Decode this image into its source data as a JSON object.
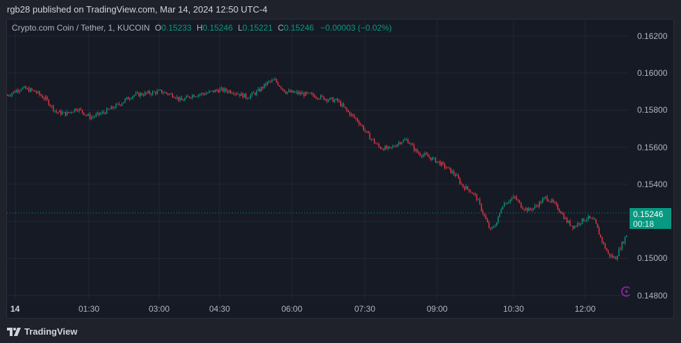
{
  "header": {
    "published_text": "rgb28 published on TradingView.com, Mar 14, 2024 12:50 UTC-4"
  },
  "legend": {
    "symbol": "Crypto.com Coin / Tether, 1, KUCOIN",
    "o_label": "O",
    "o_value": "0.15233",
    "h_label": "H",
    "h_value": "0.15246",
    "l_label": "L",
    "l_value": "0.15221",
    "c_label": "C",
    "c_value": "0.15246",
    "change": "−0.00003 (−0.02%)"
  },
  "price_tag": {
    "price": "0.15246",
    "countdown": "00:18"
  },
  "footer": {
    "brand": "TradingView"
  },
  "colors": {
    "up": "#089981",
    "down": "#f23645",
    "background": "#161a25",
    "grid": "#232734",
    "accent_purple": "#9c27b0"
  },
  "chart_data": {
    "type": "candlestick",
    "title": "Crypto.com Coin / Tether, 1, KUCOIN",
    "xlabel": "",
    "ylabel": "",
    "ylim": [
      0.1476,
      0.1628
    ],
    "y_ticks": [
      "0.16200",
      "0.16000",
      "0.15800",
      "0.15600",
      "0.15400",
      "0.15000",
      "0.14800"
    ],
    "x_ticks": [
      "14",
      "01:30",
      "03:00",
      "04:30",
      "06:00",
      "07:30",
      "09:00",
      "10:30",
      "12:00"
    ],
    "last_price": 0.15246,
    "grid": true,
    "close_path": [
      [
        0,
        0.1588
      ],
      [
        20,
        0.1592
      ],
      [
        40,
        0.159
      ],
      [
        55,
        0.1586
      ],
      [
        70,
        0.1579
      ],
      [
        85,
        0.1578
      ],
      [
        100,
        0.1581
      ],
      [
        120,
        0.1576
      ],
      [
        140,
        0.1579
      ],
      [
        160,
        0.1583
      ],
      [
        180,
        0.1588
      ],
      [
        200,
        0.1589
      ],
      [
        220,
        0.159
      ],
      [
        240,
        0.1588
      ],
      [
        250,
        0.1585
      ],
      [
        265,
        0.1588
      ],
      [
        285,
        0.1589
      ],
      [
        305,
        0.1591
      ],
      [
        325,
        0.159
      ],
      [
        345,
        0.1587
      ],
      [
        360,
        0.159
      ],
      [
        375,
        0.1595
      ],
      [
        385,
        0.1596
      ],
      [
        400,
        0.159
      ],
      [
        420,
        0.1589
      ],
      [
        440,
        0.1588
      ],
      [
        460,
        0.1586
      ],
      [
        475,
        0.1585
      ],
      [
        490,
        0.1579
      ],
      [
        505,
        0.1574
      ],
      [
        520,
        0.1566
      ],
      [
        535,
        0.156
      ],
      [
        550,
        0.1559
      ],
      [
        565,
        0.1563
      ],
      [
        575,
        0.1564
      ],
      [
        590,
        0.1557
      ],
      [
        605,
        0.1555
      ],
      [
        620,
        0.1552
      ],
      [
        635,
        0.1548
      ],
      [
        645,
        0.1545
      ],
      [
        655,
        0.1539
      ],
      [
        665,
        0.1537
      ],
      [
        675,
        0.1533
      ],
      [
        685,
        0.1524
      ],
      [
        695,
        0.1515
      ],
      [
        705,
        0.152
      ],
      [
        712,
        0.1529
      ],
      [
        720,
        0.1531
      ],
      [
        730,
        0.1533
      ],
      [
        740,
        0.1528
      ],
      [
        750,
        0.1526
      ],
      [
        760,
        0.1528
      ],
      [
        775,
        0.1533
      ],
      [
        785,
        0.153
      ],
      [
        795,
        0.1526
      ],
      [
        805,
        0.152
      ],
      [
        815,
        0.1517
      ],
      [
        825,
        0.152
      ],
      [
        835,
        0.1522
      ],
      [
        845,
        0.152
      ],
      [
        855,
        0.151
      ],
      [
        865,
        0.1502
      ],
      [
        875,
        0.15
      ],
      [
        882,
        0.1506
      ],
      [
        890,
        0.1512
      ],
      [
        897,
        0.1518
      ],
      [
        903,
        0.1525
      ]
    ]
  }
}
